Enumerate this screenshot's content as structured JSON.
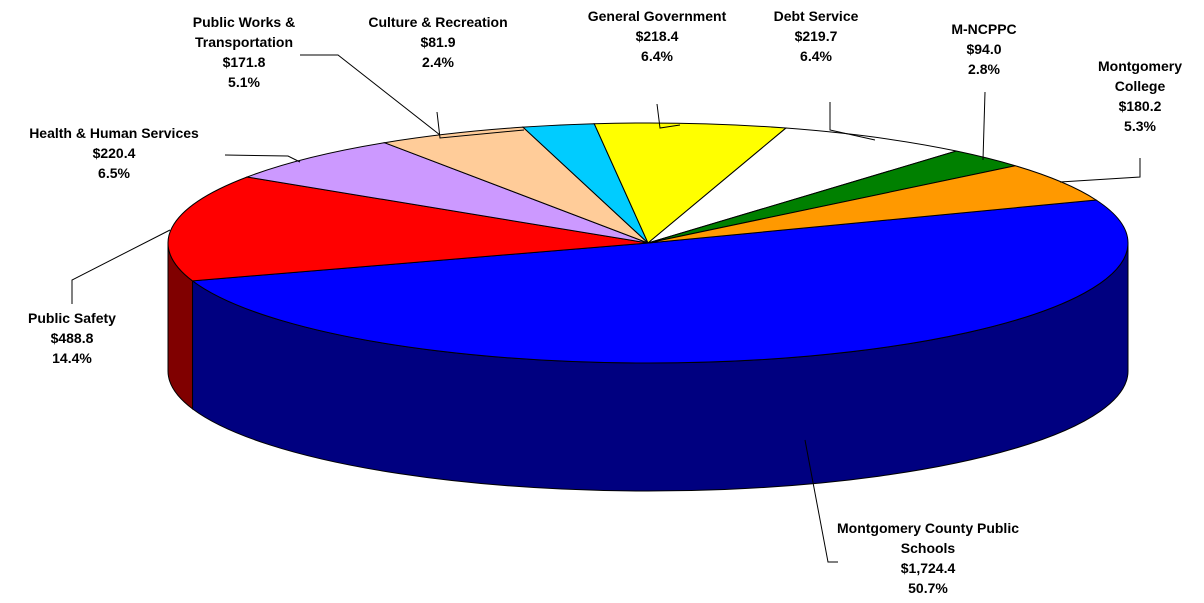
{
  "chart_data": {
    "type": "pie3d",
    "categories": [
      "Montgomery County Public Schools",
      "Public Safety",
      "Health & Human Services",
      "Public Works & Transportation",
      "Culture & Recreation",
      "General Government",
      "Debt Service",
      "M-NCPPC",
      "Montgomery College"
    ],
    "values": [
      1724.4,
      488.8,
      220.4,
      171.8,
      81.9,
      218.4,
      219.7,
      94.0,
      180.2
    ],
    "value_labels": [
      "$1,724.4",
      "$488.8",
      "$220.4",
      "$171.8",
      "$81.9",
      "$218.4",
      "$219.7",
      "$94.0",
      "$180.2"
    ],
    "percents": [
      50.7,
      14.4,
      6.5,
      5.1,
      2.4,
      6.4,
      6.4,
      2.8,
      5.3
    ],
    "percent_labels": [
      "50.7%",
      "14.4%",
      "6.5%",
      "5.1%",
      "2.4%",
      "6.4%",
      "6.4%",
      "2.8%",
      "5.3%"
    ],
    "colors": [
      "#0000ff",
      "#ff0000",
      "#cc99ff",
      "#ffcc99",
      "#00ccff",
      "#ffff00",
      "#ffffff",
      "#008000",
      "#ff9900"
    ]
  }
}
